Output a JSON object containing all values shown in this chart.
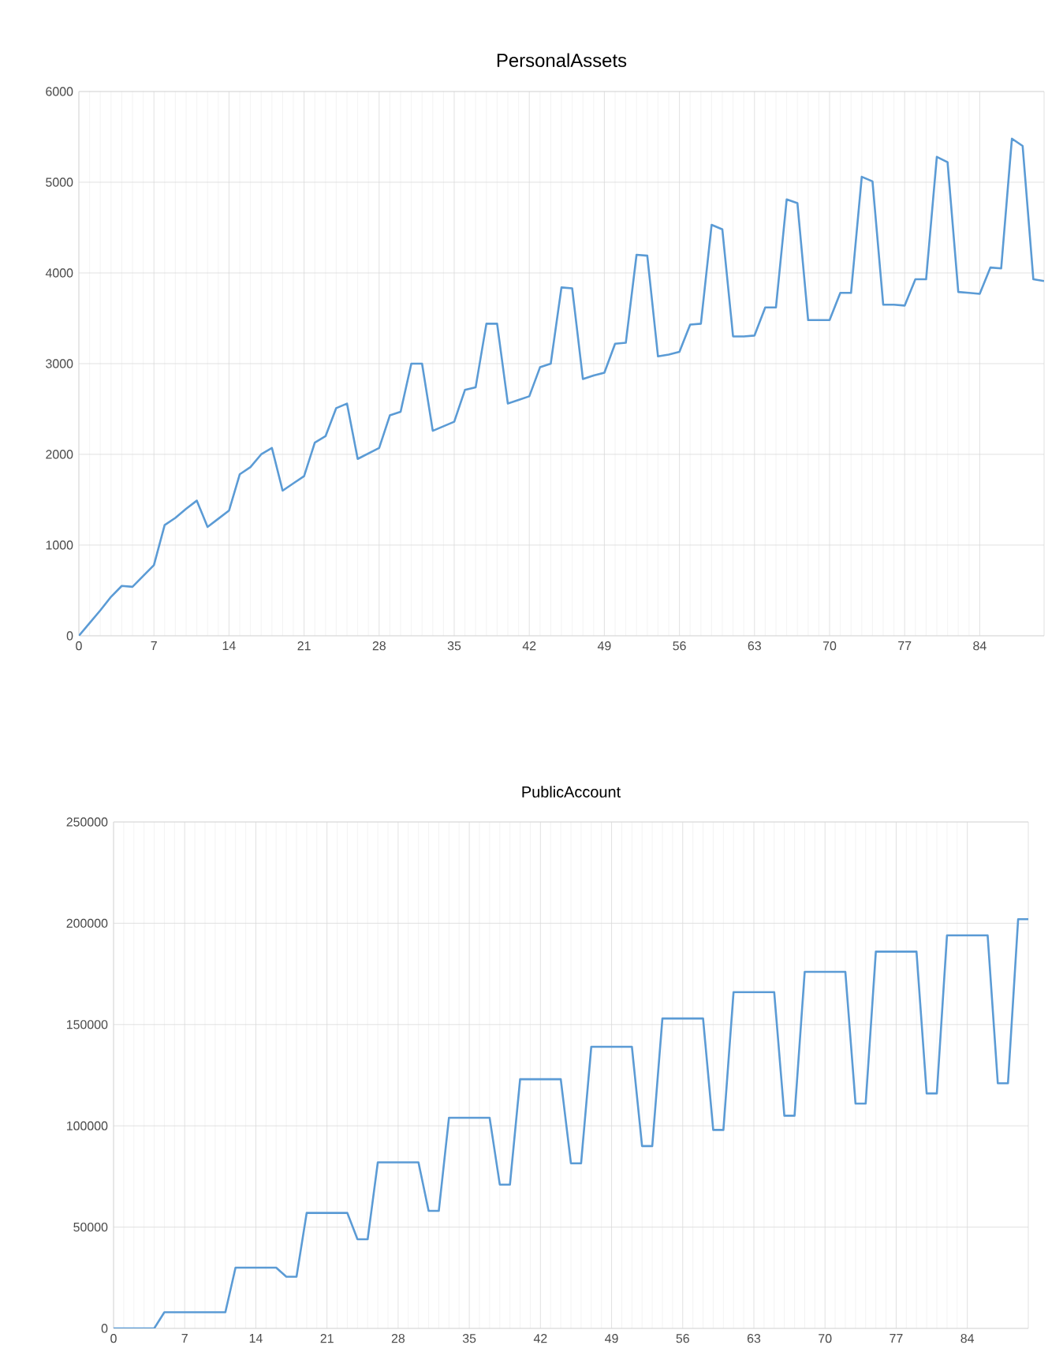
{
  "chart_data": [
    {
      "type": "line",
      "title": "PersonalAssets",
      "color": "#5b9bd5",
      "grid": true,
      "marker": "none",
      "line_style": "solid",
      "x": [
        0,
        1,
        2,
        3,
        4,
        5,
        6,
        7,
        8,
        9,
        10,
        11,
        12,
        13,
        14,
        15,
        16,
        17,
        18,
        19,
        20,
        21,
        22,
        23,
        24,
        25,
        26,
        27,
        28,
        29,
        30,
        31,
        32,
        33,
        34,
        35,
        36,
        37,
        38,
        39,
        40,
        41,
        42,
        43,
        44,
        45,
        46,
        47,
        48,
        49,
        50,
        51,
        52,
        53,
        54,
        55,
        56,
        57,
        58,
        59,
        60,
        61,
        62,
        63,
        64,
        65,
        66,
        67,
        68,
        69,
        70,
        71,
        72,
        73,
        74,
        75,
        76,
        77,
        78,
        79,
        80,
        81,
        82,
        83,
        84,
        85,
        86,
        87,
        88,
        89,
        90
      ],
      "values": [
        0,
        140,
        280,
        430,
        550,
        540,
        660,
        780,
        1220,
        1300,
        1400,
        1490,
        1200,
        1290,
        1380,
        1780,
        1860,
        2000,
        2070,
        1600,
        1680,
        1760,
        2130,
        2200,
        2510,
        2560,
        1950,
        2010,
        2070,
        2430,
        2470,
        3000,
        3000,
        2260,
        2310,
        2360,
        2710,
        2740,
        3440,
        3440,
        2560,
        2600,
        2640,
        2960,
        3000,
        3840,
        3830,
        2830,
        2870,
        2900,
        3220,
        3230,
        4200,
        4190,
        3080,
        3100,
        3130,
        3430,
        3440,
        4530,
        4480,
        3300,
        3300,
        3310,
        3620,
        3620,
        4810,
        4770,
        3480,
        3480,
        3480,
        3780,
        3780,
        5060,
        5010,
        3650,
        3650,
        3640,
        3930,
        3930,
        5280,
        5220,
        3790,
        3780,
        3770,
        4060,
        4050,
        5480,
        5400,
        3930,
        3910
      ],
      "xlim": [
        0,
        90
      ],
      "xticks": [
        0,
        7,
        14,
        21,
        28,
        35,
        42,
        49,
        56,
        63,
        70,
        77,
        84
      ],
      "ylim": [
        0,
        6000
      ],
      "yticks": [
        0,
        1000,
        2000,
        3000,
        4000,
        5000,
        6000
      ]
    },
    {
      "type": "line",
      "title": "PublicAccount",
      "color": "#5b9bd5",
      "grid": true,
      "marker": "none",
      "line_style": "solid",
      "x": [
        0,
        1,
        2,
        3,
        4,
        5,
        6,
        7,
        8,
        9,
        10,
        11,
        12,
        13,
        14,
        15,
        16,
        17,
        18,
        19,
        20,
        21,
        22,
        23,
        24,
        25,
        26,
        27,
        28,
        29,
        30,
        31,
        32,
        33,
        34,
        35,
        36,
        37,
        38,
        39,
        40,
        41,
        42,
        43,
        44,
        45,
        46,
        47,
        48,
        49,
        50,
        51,
        52,
        53,
        54,
        55,
        56,
        57,
        58,
        59,
        60,
        61,
        62,
        63,
        64,
        65,
        66,
        67,
        68,
        69,
        70,
        71,
        72,
        73,
        74,
        75,
        76,
        77,
        78,
        79,
        80,
        81,
        82,
        83,
        84,
        85,
        86,
        87,
        88,
        89,
        90
      ],
      "values": [
        0,
        0,
        0,
        0,
        0,
        8000,
        8000,
        8000,
        8000,
        8000,
        8000,
        8000,
        30000,
        30000,
        30000,
        30000,
        30000,
        25500,
        25500,
        57000,
        57000,
        57000,
        57000,
        57000,
        44000,
        44000,
        82000,
        82000,
        82000,
        82000,
        82000,
        58000,
        58000,
        104000,
        104000,
        104000,
        104000,
        104000,
        71000,
        71000,
        123000,
        123000,
        123000,
        123000,
        123000,
        81500,
        81500,
        139000,
        139000,
        139000,
        139000,
        139000,
        90000,
        90000,
        153000,
        153000,
        153000,
        153000,
        153000,
        98000,
        98000,
        166000,
        166000,
        166000,
        166000,
        166000,
        105000,
        105000,
        176000,
        176000,
        176000,
        176000,
        176000,
        111000,
        111000,
        186000,
        186000,
        186000,
        186000,
        186000,
        116000,
        116000,
        194000,
        194000,
        194000,
        194000,
        194000,
        121000,
        121000,
        202000,
        202000
      ],
      "xlim": [
        0,
        90
      ],
      "xticks": [
        0,
        7,
        14,
        21,
        28,
        35,
        42,
        49,
        56,
        63,
        70,
        77,
        84
      ],
      "ylim": [
        0,
        250000
      ],
      "yticks": [
        0,
        50000,
        100000,
        150000,
        200000,
        250000
      ]
    }
  ]
}
